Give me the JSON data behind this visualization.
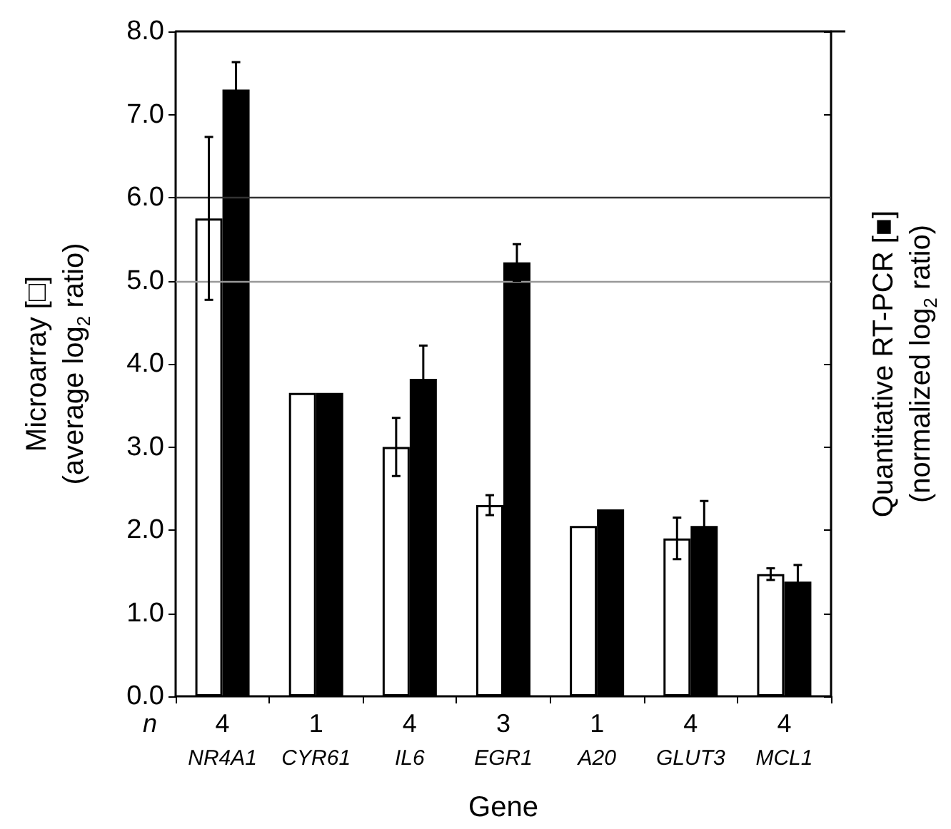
{
  "chart_data": {
    "type": "bar",
    "xlabel": "Gene",
    "ylabel": "Microarray [□]\n(average log$_{2}$ ratio)",
    "y2label": "Quantitative RT-PCR [■]\n(normalized log$_{2}$ ratio)",
    "categories": [
      "NR4A1",
      "CYR61",
      "IL6",
      "EGR1",
      "A20",
      "GLUT3",
      "MCL1"
    ],
    "series": [
      {
        "color": "#ffffff",
        "values": [
          5.75,
          3.65,
          3.0,
          2.3,
          2.05,
          1.9,
          1.47
        ],
        "errors": [
          0.98,
          null,
          0.35,
          0.12,
          null,
          0.25,
          0.07
        ]
      },
      {
        "color": "#000000",
        "values": [
          7.3,
          3.65,
          3.82,
          5.22,
          2.25,
          2.05,
          1.38
        ],
        "errors": [
          0.33,
          null,
          0.4,
          0.22,
          null,
          0.3,
          0.2
        ]
      }
    ],
    "ylim": [
      0,
      8
    ],
    "yticks": [
      {
        "value": 0,
        "label": "0.0"
      },
      {
        "value": 1,
        "label": "1.0"
      },
      {
        "value": 2,
        "label": "2.0"
      },
      {
        "value": 3,
        "label": "3.0"
      },
      {
        "value": 4,
        "label": "4.0"
      },
      {
        "value": 5,
        "label": "5.0"
      },
      {
        "value": 6,
        "label": "6.0"
      },
      {
        "value": 7,
        "label": "7.0"
      },
      {
        "value": 8,
        "label": "8.0"
      }
    ],
    "ref_lines": [
      {
        "axis": "y",
        "value": 6,
        "color": "#333333"
      },
      {
        "axis": "y",
        "value": 5,
        "color": "#999999"
      }
    ],
    "annotations": [
      "n",
      "4",
      "1",
      "4",
      "3",
      "1",
      "4",
      "4"
    ],
    "grid": false
  }
}
